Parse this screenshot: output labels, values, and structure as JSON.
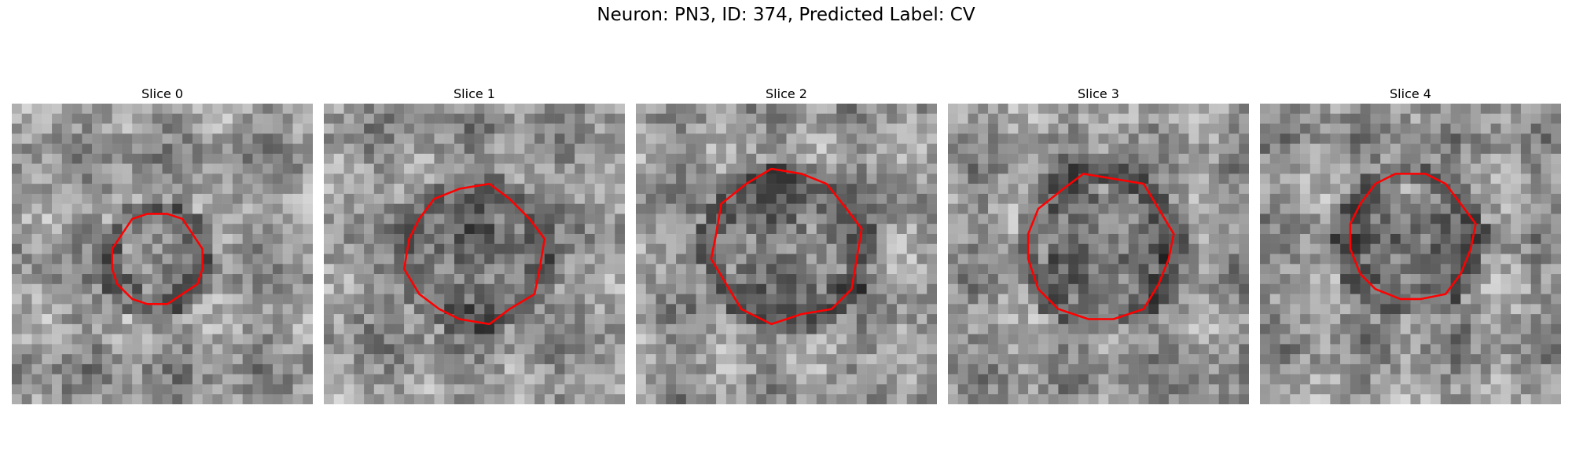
{
  "figure": {
    "title": "Neuron: PN3, ID: 374, Predicted Label: CV"
  },
  "panels": [
    {
      "title": "Slice 0"
    },
    {
      "title": "Slice 1"
    },
    {
      "title": "Slice 2"
    },
    {
      "title": "Slice 3"
    },
    {
      "title": "Slice 4"
    }
  ],
  "colors": {
    "contour": "#ff0000",
    "image_colormap": "gray"
  }
}
